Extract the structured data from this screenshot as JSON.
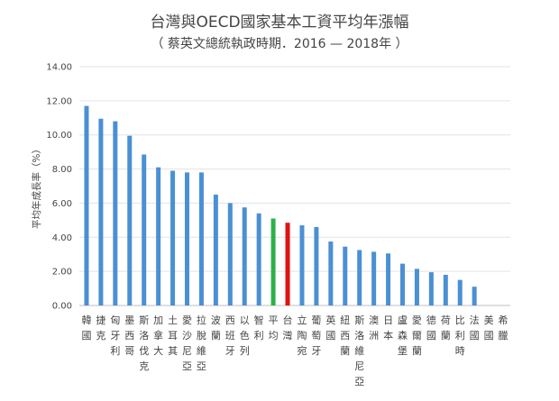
{
  "chart_data": {
    "type": "bar",
    "title": "台灣與OECD國家基本工資平均年漲幅",
    "subtitle": "（ 蔡英文總統執政時期．2016 — 2018年 ）",
    "ylabel": "平均年成長率（%）",
    "ylim": [
      0,
      14
    ],
    "yticks": [
      "0.00",
      "2.00",
      "4.00",
      "6.00",
      "8.00",
      "10.00",
      "12.00",
      "14.00"
    ],
    "grid": true,
    "colors": {
      "default": "#4a90d4",
      "平均": "#2db04a",
      "台灣": "#e01010"
    },
    "categories": [
      "韓國",
      "捷克",
      "匈牙利",
      "墨西哥",
      "斯洛伐克",
      "加拿大",
      "土耳其",
      "愛沙尼亞",
      "拉脫維亞",
      "波蘭",
      "西班牙",
      "以色列",
      "智利",
      "平均",
      "台灣",
      "立陶宛",
      "葡萄牙",
      "英國",
      "紐西蘭",
      "斯洛維尼亞",
      "澳洲",
      "日本",
      "盧森堡",
      "愛爾蘭",
      "德國",
      "荷蘭",
      "比利時",
      "法國",
      "美國",
      "希臘"
    ],
    "values": [
      11.7,
      10.95,
      10.8,
      9.95,
      8.85,
      8.1,
      7.9,
      7.8,
      7.8,
      6.5,
      6.0,
      5.75,
      5.4,
      5.1,
      4.85,
      4.7,
      4.6,
      3.75,
      3.45,
      3.25,
      3.15,
      3.05,
      2.45,
      2.15,
      1.95,
      1.8,
      1.5,
      1.1,
      0,
      0
    ]
  }
}
